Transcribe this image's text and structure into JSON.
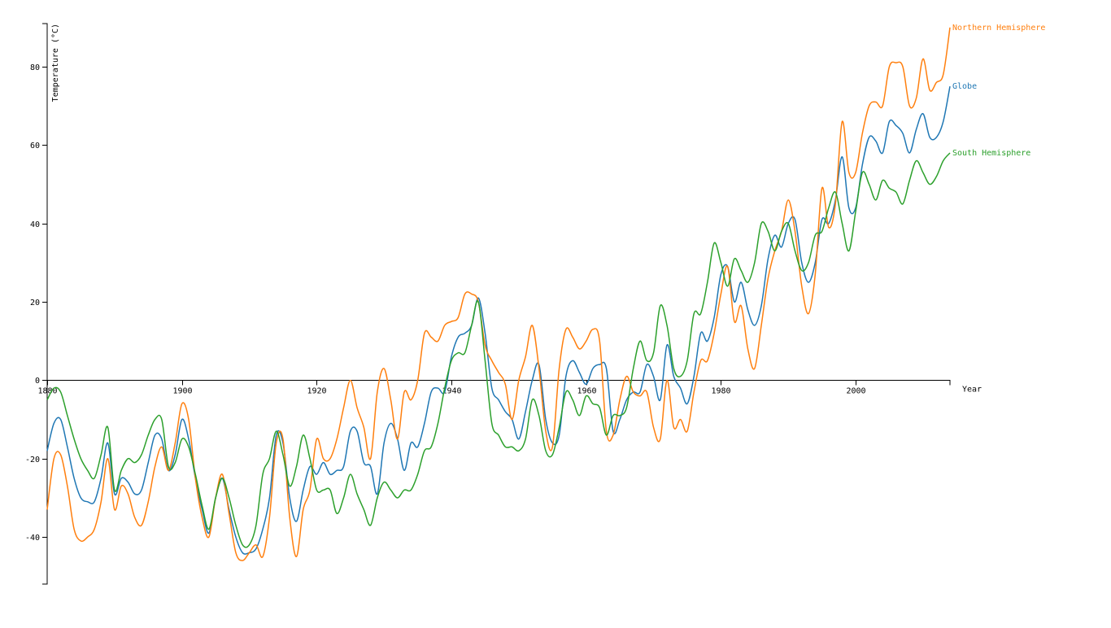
{
  "chart_data": {
    "type": "line",
    "x_label": "Year",
    "y_label": "Temperature (°C)",
    "x": [
      1880,
      1881,
      1882,
      1883,
      1884,
      1885,
      1886,
      1887,
      1888,
      1889,
      1890,
      1891,
      1892,
      1893,
      1894,
      1895,
      1896,
      1897,
      1898,
      1899,
      1900,
      1901,
      1902,
      1903,
      1904,
      1905,
      1906,
      1907,
      1908,
      1909,
      1910,
      1911,
      1912,
      1913,
      1914,
      1915,
      1916,
      1917,
      1918,
      1919,
      1920,
      1921,
      1922,
      1923,
      1924,
      1925,
      1926,
      1927,
      1928,
      1929,
      1930,
      1931,
      1932,
      1933,
      1934,
      1935,
      1936,
      1937,
      1938,
      1939,
      1940,
      1941,
      1942,
      1943,
      1944,
      1945,
      1946,
      1947,
      1948,
      1949,
      1950,
      1951,
      1952,
      1953,
      1954,
      1955,
      1956,
      1957,
      1958,
      1959,
      1960,
      1961,
      1962,
      1963,
      1964,
      1965,
      1966,
      1967,
      1968,
      1969,
      1970,
      1971,
      1972,
      1973,
      1974,
      1975,
      1976,
      1977,
      1978,
      1979,
      1980,
      1981,
      1982,
      1983,
      1984,
      1985,
      1986,
      1987,
      1988,
      1989,
      1990,
      1991,
      1992,
      1993,
      1994,
      1995,
      1996,
      1997,
      1998,
      1999,
      2000,
      2001,
      2002,
      2003,
      2004,
      2005,
      2006,
      2007,
      2008,
      2009,
      2010,
      2011,
      2012,
      2013,
      2014
    ],
    "series": [
      {
        "name": "Globe",
        "color": "#1f77b4",
        "values": [
          -18,
          -11,
          -10,
          -17,
          -25,
          -30,
          -31,
          -31,
          -25,
          -16,
          -29,
          -25,
          -26,
          -29,
          -28,
          -21,
          -14,
          -15,
          -23,
          -19,
          -10,
          -15,
          -25,
          -33,
          -39,
          -30,
          -25,
          -33,
          -40,
          -44,
          -44,
          -43,
          -38,
          -30,
          -14,
          -16,
          -30,
          -36,
          -28,
          -22,
          -24,
          -21,
          -24,
          -23,
          -22,
          -13,
          -13,
          -21,
          -22,
          -29,
          -16,
          -11,
          -15,
          -23,
          -16,
          -17,
          -11,
          -3,
          -2,
          -3,
          6,
          11,
          12,
          14,
          21,
          12,
          -2,
          -5,
          -8,
          -10,
          -15,
          -8,
          0,
          4,
          -10,
          -16,
          -14,
          1,
          5,
          2,
          -1,
          3,
          4,
          3,
          -13,
          -10,
          -5,
          -3,
          -3,
          4,
          1,
          -5,
          9,
          1,
          -2,
          -6,
          1,
          12,
          10,
          16,
          27,
          29,
          20,
          25,
          18,
          14,
          19,
          31,
          37,
          34,
          40,
          41,
          30,
          25,
          30,
          41,
          40,
          46,
          57,
          44,
          44,
          55,
          62,
          61,
          58,
          66,
          65,
          63,
          58,
          64,
          68,
          62,
          62,
          66,
          75
        ]
      },
      {
        "name": "Northern Hemisphere",
        "color": "#ff7f0e",
        "values": [
          -33,
          -20,
          -19,
          -27,
          -38,
          -41,
          -40,
          -38,
          -31,
          -20,
          -33,
          -27,
          -29,
          -35,
          -37,
          -31,
          -22,
          -17,
          -23,
          -16,
          -6,
          -10,
          -25,
          -35,
          -40,
          -30,
          -24,
          -34,
          -44,
          -46,
          -44,
          -42,
          -45,
          -35,
          -16,
          -15,
          -35,
          -45,
          -33,
          -28,
          -15,
          -20,
          -20,
          -15,
          -7,
          0,
          -7,
          -12,
          -20,
          -3,
          3,
          -5,
          -15,
          -3,
          -5,
          0,
          12,
          11,
          10,
          14,
          15,
          16,
          22,
          22,
          20,
          9,
          5,
          2,
          -1,
          -10,
          0,
          6,
          14,
          3,
          -13,
          -17,
          3,
          13,
          11,
          8,
          10,
          13,
          10,
          -13,
          -14,
          -5,
          1,
          -3,
          -4,
          -3,
          -12,
          -15,
          0,
          -12,
          -10,
          -13,
          -3,
          5,
          5,
          12,
          22,
          29,
          15,
          19,
          8,
          3,
          14,
          26,
          33,
          38,
          46,
          38,
          24,
          17,
          27,
          49,
          39,
          45,
          66,
          53,
          53,
          63,
          70,
          71,
          70,
          80,
          81,
          80,
          70,
          72,
          82,
          74,
          76,
          78,
          90
        ]
      },
      {
        "name": "South Hemisphere",
        "color": "#2ca02c",
        "values": [
          -5,
          -2,
          -3,
          -9,
          -15,
          -20,
          -23,
          -25,
          -19,
          -12,
          -28,
          -23,
          -20,
          -21,
          -19,
          -14,
          -10,
          -10,
          -22,
          -21,
          -15,
          -17,
          -24,
          -32,
          -38,
          -30,
          -25,
          -30,
          -37,
          -42,
          -42,
          -37,
          -24,
          -20,
          -13,
          -19,
          -27,
          -22,
          -14,
          -20,
          -28,
          -28,
          -28,
          -34,
          -30,
          -24,
          -29,
          -33,
          -37,
          -30,
          -26,
          -28,
          -30,
          -28,
          -28,
          -24,
          -18,
          -17,
          -11,
          -2,
          5,
          7,
          7,
          14,
          20,
          5,
          -11,
          -14,
          -17,
          -17,
          -18,
          -15,
          -5,
          -9,
          -18,
          -19,
          -12,
          -3,
          -5,
          -9,
          -4,
          -6,
          -7,
          -14,
          -9,
          -9,
          -7,
          3,
          10,
          5,
          7,
          19,
          14,
          3,
          1,
          5,
          17,
          17,
          25,
          35,
          30,
          24,
          31,
          28,
          25,
          30,
          40,
          38,
          33,
          38,
          40,
          33,
          28,
          30,
          37,
          38,
          44,
          48,
          40,
          33,
          43,
          53,
          50,
          46,
          51,
          49,
          48,
          45,
          51,
          56,
          53,
          50,
          52,
          56,
          58
        ]
      }
    ],
    "xlim": [
      1880,
      2014
    ],
    "xticks": [
      1880,
      1900,
      1920,
      1940,
      1960,
      1980,
      2000
    ],
    "ylim": [
      -52,
      91
    ],
    "yticks": [
      -40,
      -20,
      0,
      20,
      40,
      60,
      80
    ]
  }
}
